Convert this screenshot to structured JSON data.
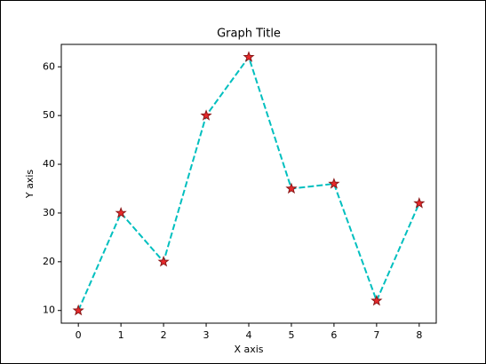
{
  "chart_data": {
    "type": "line",
    "title": "Graph Title",
    "xlabel": "X axis",
    "ylabel": "Y axis",
    "x": [
      0,
      1,
      2,
      3,
      4,
      5,
      6,
      7,
      8
    ],
    "values": [
      10,
      30,
      20,
      50,
      62,
      35,
      36,
      12,
      32
    ],
    "color": "#00bfbf",
    "marker_color": "#e8282a",
    "marker_edge_color": "#8b1a1a",
    "xlim": [
      -0.4,
      8.4
    ],
    "ylim": [
      7.4,
      64.6
    ],
    "xticks": [
      0,
      1,
      2,
      3,
      4,
      5,
      6,
      7,
      8
    ],
    "yticks": [
      10,
      20,
      30,
      40,
      50,
      60
    ]
  }
}
